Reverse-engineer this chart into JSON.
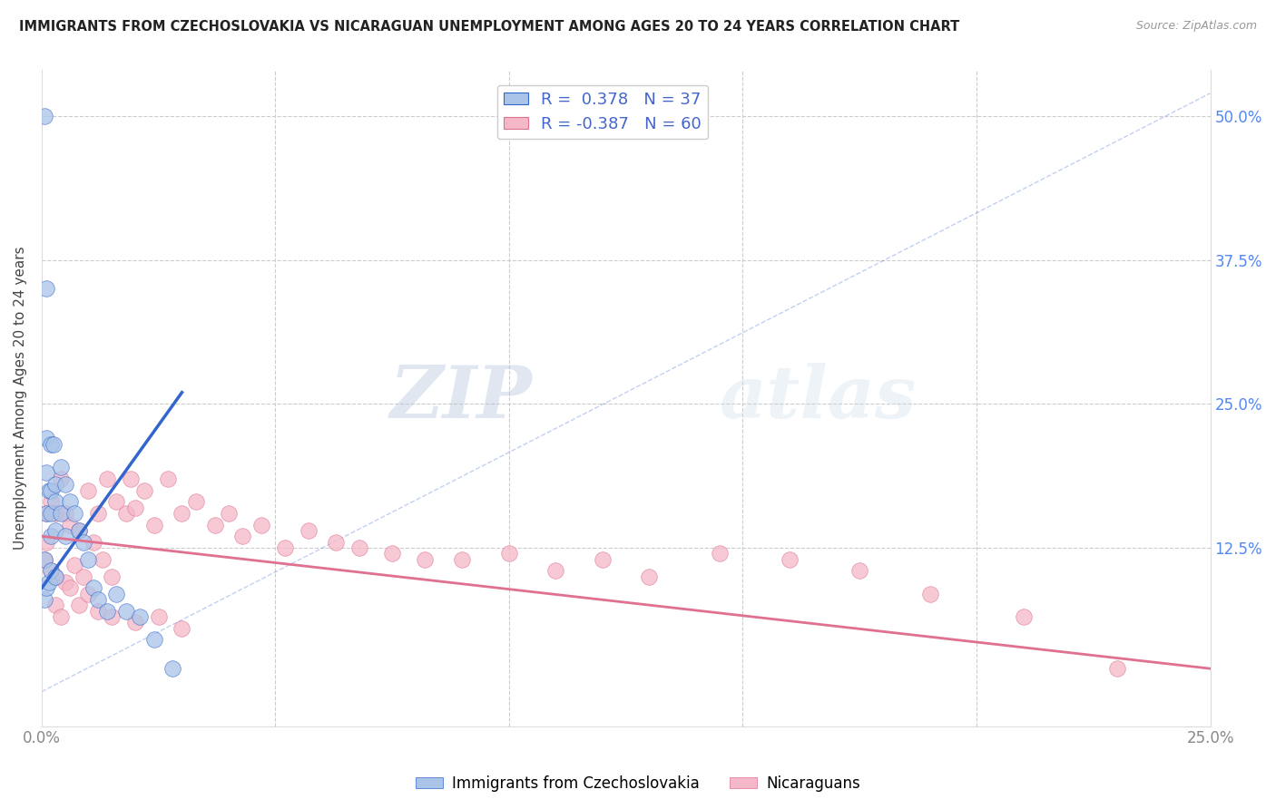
{
  "title": "IMMIGRANTS FROM CZECHOSLOVAKIA VS NICARAGUAN UNEMPLOYMENT AMONG AGES 20 TO 24 YEARS CORRELATION CHART",
  "source": "Source: ZipAtlas.com",
  "ylabel": "Unemployment Among Ages 20 to 24 years",
  "x_ticks": [
    0.0,
    0.05,
    0.1,
    0.15,
    0.2,
    0.25
  ],
  "x_tick_labels": [
    "0.0%",
    "",
    "",
    "",
    "",
    "25.0%"
  ],
  "y_ticks": [
    0.0,
    0.125,
    0.25,
    0.375,
    0.5
  ],
  "y_tick_labels_right": [
    "",
    "12.5%",
    "25.0%",
    "37.5%",
    "50.0%"
  ],
  "xlim": [
    0.0,
    0.25
  ],
  "ylim": [
    -0.03,
    0.54
  ],
  "blue_color": "#aac4e8",
  "blue_line_color": "#3366cc",
  "pink_color": "#f4b8c8",
  "pink_line_color": "#e07090",
  "blue_dots_x": [
    0.0005,
    0.0005,
    0.0005,
    0.001,
    0.001,
    0.001,
    0.001,
    0.001,
    0.0015,
    0.0015,
    0.002,
    0.002,
    0.002,
    0.002,
    0.002,
    0.0025,
    0.003,
    0.003,
    0.003,
    0.003,
    0.004,
    0.004,
    0.005,
    0.005,
    0.006,
    0.007,
    0.008,
    0.009,
    0.01,
    0.011,
    0.012,
    0.014,
    0.016,
    0.018,
    0.021,
    0.024,
    0.028
  ],
  "blue_dots_y": [
    0.5,
    0.115,
    0.08,
    0.35,
    0.22,
    0.19,
    0.155,
    0.09,
    0.175,
    0.095,
    0.215,
    0.175,
    0.155,
    0.135,
    0.105,
    0.215,
    0.18,
    0.165,
    0.14,
    0.1,
    0.195,
    0.155,
    0.18,
    0.135,
    0.165,
    0.155,
    0.14,
    0.13,
    0.115,
    0.09,
    0.08,
    0.07,
    0.085,
    0.07,
    0.065,
    0.045,
    0.02
  ],
  "pink_dots_x": [
    0.0005,
    0.001,
    0.001,
    0.002,
    0.002,
    0.003,
    0.003,
    0.004,
    0.005,
    0.005,
    0.006,
    0.007,
    0.008,
    0.009,
    0.01,
    0.011,
    0.012,
    0.013,
    0.014,
    0.015,
    0.016,
    0.018,
    0.019,
    0.02,
    0.022,
    0.024,
    0.027,
    0.03,
    0.033,
    0.037,
    0.04,
    0.043,
    0.047,
    0.052,
    0.057,
    0.063,
    0.068,
    0.075,
    0.082,
    0.09,
    0.1,
    0.11,
    0.12,
    0.13,
    0.145,
    0.16,
    0.175,
    0.19,
    0.21,
    0.23,
    0.003,
    0.004,
    0.006,
    0.008,
    0.01,
    0.012,
    0.015,
    0.02,
    0.025,
    0.03
  ],
  "pink_dots_y": [
    0.115,
    0.155,
    0.13,
    0.165,
    0.105,
    0.155,
    0.1,
    0.185,
    0.155,
    0.095,
    0.145,
    0.11,
    0.14,
    0.1,
    0.175,
    0.13,
    0.155,
    0.115,
    0.185,
    0.1,
    0.165,
    0.155,
    0.185,
    0.16,
    0.175,
    0.145,
    0.185,
    0.155,
    0.165,
    0.145,
    0.155,
    0.135,
    0.145,
    0.125,
    0.14,
    0.13,
    0.125,
    0.12,
    0.115,
    0.115,
    0.12,
    0.105,
    0.115,
    0.1,
    0.12,
    0.115,
    0.105,
    0.085,
    0.065,
    0.02,
    0.075,
    0.065,
    0.09,
    0.075,
    0.085,
    0.07,
    0.065,
    0.06,
    0.065,
    0.055
  ],
  "watermark_zip": "ZIP",
  "watermark_atlas": "atlas",
  "background_color": "#ffffff",
  "grid_color": "#cccccc",
  "blue_trend_x": [
    0.0,
    0.03
  ],
  "blue_trend_y": [
    0.09,
    0.26
  ],
  "pink_trend_x": [
    0.0,
    0.25
  ],
  "pink_trend_y": [
    0.135,
    0.02
  ],
  "ref_line_x": [
    0.0,
    0.25
  ],
  "ref_line_y": [
    0.0,
    0.52
  ]
}
